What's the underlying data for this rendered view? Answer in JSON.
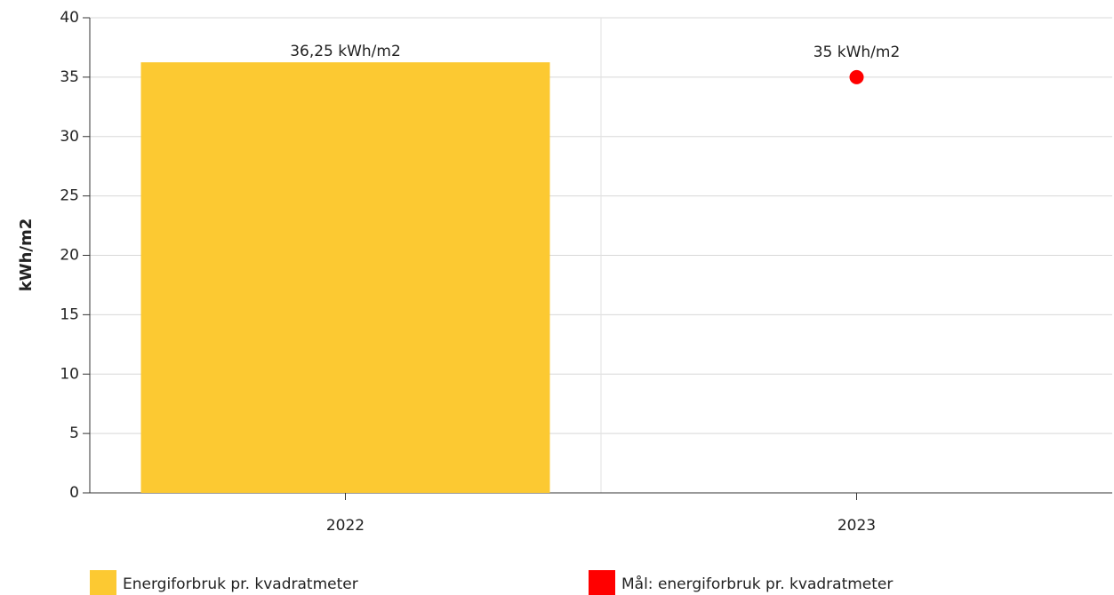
{
  "chart_data": {
    "type": "bar",
    "y_label": "kWh/m2",
    "categories": [
      "2022",
      "2023"
    ],
    "series": [
      {
        "name": "Energiforbruk pr. kvadratmeter",
        "type": "bar",
        "color": "#fcc932",
        "values": [
          36.25,
          null
        ],
        "value_labels": [
          "36,25 kWh/m2",
          null
        ]
      },
      {
        "name": "Mål: energiforbruk pr. kvadratmeter",
        "type": "point",
        "color": "#ff0000",
        "values": [
          null,
          35
        ],
        "value_labels": [
          null,
          "35 kWh/m2"
        ]
      }
    ],
    "ylim": [
      0,
      40
    ],
    "yticks": [
      0,
      5,
      10,
      15,
      20,
      25,
      30,
      35,
      40
    ],
    "grid": true
  }
}
